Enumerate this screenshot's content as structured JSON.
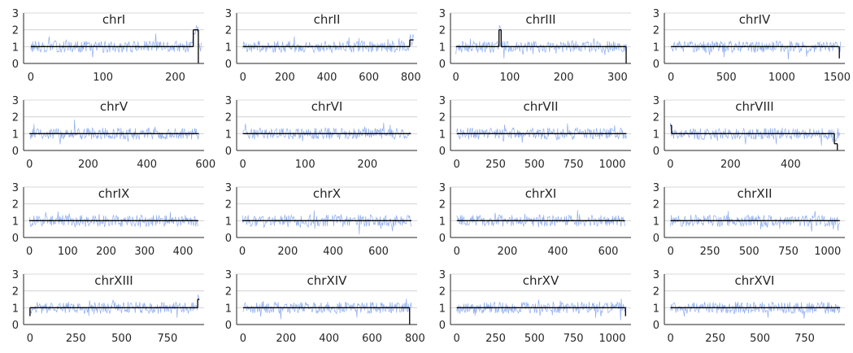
{
  "chart_data": {
    "type": "line",
    "layout": "4x4 grid of small multiples",
    "grid": "horizontal gridlines only",
    "legend": "none",
    "colors": {
      "signal": "#8cacf0",
      "segments": "#000000",
      "grid": "#cccccc",
      "axis": "#262626"
    },
    "ylim": [
      0,
      3
    ],
    "yticks": [
      "0",
      "1",
      "2",
      "3"
    ],
    "panels": [
      {
        "title": "chrI",
        "length": 236,
        "xlim": [
          -10,
          240
        ],
        "xticks": [
          0,
          100,
          200
        ],
        "segments": [
          {
            "x": [
              0,
              225
            ],
            "y": 1.0
          },
          {
            "x": [
              225,
              232
            ],
            "y": 2.0
          }
        ],
        "drops": [
          {
            "x": 232,
            "y": [
              2.0,
              0
            ]
          }
        ]
      },
      {
        "title": "chrII",
        "length": 813,
        "xlim": [
          -30,
          830
        ],
        "xticks": [
          0,
          200,
          400,
          600,
          800
        ],
        "segments": [
          {
            "x": [
              0,
              795
            ],
            "y": 1.0
          },
          {
            "x": [
              795,
              813
            ],
            "y": 1.4
          }
        ],
        "drops": []
      },
      {
        "title": "chrIII",
        "length": 317,
        "xlim": [
          -10,
          325
        ],
        "xticks": [
          0,
          100,
          200,
          300
        ],
        "segments": [
          {
            "x": [
              0,
              80
            ],
            "y": 1.0
          },
          {
            "x": [
              80,
              84
            ],
            "y": 2.0
          },
          {
            "x": [
              84,
              316
            ],
            "y": 1.0
          }
        ],
        "drops": [
          {
            "x": 316,
            "y": [
              1.0,
              0
            ]
          }
        ]
      },
      {
        "title": "chrIV",
        "length": 1532,
        "xlim": [
          -60,
          1570
        ],
        "xticks": [
          0,
          500,
          1000,
          1500
        ],
        "segments": [
          {
            "x": [
              0,
              1520
            ],
            "y": 1.0
          }
        ],
        "drops": [
          {
            "x": 1520,
            "y": [
              1.0,
              0.3
            ]
          }
        ]
      },
      {
        "title": "chrV",
        "length": 577,
        "xlim": [
          -20,
          595
        ],
        "xticks": [
          0,
          200,
          400,
          600
        ],
        "segments": [
          {
            "x": [
              0,
              577
            ],
            "y": 1.0
          }
        ],
        "drops": []
      },
      {
        "title": "chrVI",
        "length": 270,
        "xlim": [
          -10,
          280
        ],
        "xticks": [
          0,
          100,
          200
        ],
        "segments": [
          {
            "x": [
              0,
              270
            ],
            "y": 1.0
          }
        ],
        "drops": []
      },
      {
        "title": "chrVII",
        "length": 1091,
        "xlim": [
          -40,
          1120
        ],
        "xticks": [
          0,
          250,
          500,
          750,
          1000
        ],
        "segments": [
          {
            "x": [
              0,
              1091
            ],
            "y": 1.0
          }
        ],
        "drops": []
      },
      {
        "title": "chrVIII",
        "length": 563,
        "xlim": [
          -20,
          580
        ],
        "xticks": [
          0,
          200,
          400
        ],
        "segments": [
          {
            "x": [
              0,
              4
            ],
            "y": 1.5
          },
          {
            "x": [
              4,
              545
            ],
            "y": 1.0
          },
          {
            "x": [
              545,
              555
            ],
            "y": 0.4
          }
        ],
        "drops": [
          {
            "x": 555,
            "y": [
              0.4,
              0
            ]
          }
        ]
      },
      {
        "title": "chrIX",
        "length": 440,
        "xlim": [
          -15,
          455
        ],
        "xticks": [
          0,
          100,
          200,
          300,
          400
        ],
        "segments": [
          {
            "x": [
              0,
              440
            ],
            "y": 1.0
          }
        ],
        "drops": []
      },
      {
        "title": "chrX",
        "length": 745,
        "xlim": [
          -25,
          770
        ],
        "xticks": [
          0,
          200,
          400,
          600
        ],
        "segments": [
          {
            "x": [
              0,
              745
            ],
            "y": 1.0
          }
        ],
        "drops": []
      },
      {
        "title": "chrXI",
        "length": 666,
        "xlim": [
          -25,
          690
        ],
        "xticks": [
          0,
          200,
          400,
          600
        ],
        "segments": [
          {
            "x": [
              0,
              666
            ],
            "y": 1.0
          }
        ],
        "drops": []
      },
      {
        "title": "chrXII",
        "length": 1078,
        "xlim": [
          -40,
          1110
        ],
        "xticks": [
          0,
          250,
          500,
          750,
          1000
        ],
        "segments": [
          {
            "x": [
              0,
              1078
            ],
            "y": 1.0
          }
        ],
        "drops": []
      },
      {
        "title": "chrXIII",
        "length": 924,
        "xlim": [
          -35,
          950
        ],
        "xticks": [
          0,
          250,
          500,
          750
        ],
        "segments": [
          {
            "x": [
              0,
              915
            ],
            "y": 1.0
          },
          {
            "x": [
              915,
              924
            ],
            "y": 1.5
          }
        ],
        "drops": [
          {
            "x": 0,
            "y": [
              1.0,
              0.5
            ]
          }
        ]
      },
      {
        "title": "chrXIV",
        "length": 784,
        "xlim": [
          -30,
          810
        ],
        "xticks": [
          0,
          200,
          400,
          600,
          800
        ],
        "segments": [
          {
            "x": [
              0,
              775
            ],
            "y": 1.0
          }
        ],
        "drops": [
          {
            "x": 775,
            "y": [
              1.0,
              0
            ]
          }
        ]
      },
      {
        "title": "chrXV",
        "length": 1091,
        "xlim": [
          -40,
          1120
        ],
        "xticks": [
          0,
          250,
          500,
          750,
          1000
        ],
        "segments": [
          {
            "x": [
              0,
              1085
            ],
            "y": 1.0
          }
        ],
        "drops": [
          {
            "x": 1085,
            "y": [
              1.0,
              0.5
            ]
          }
        ]
      },
      {
        "title": "chrXVI",
        "length": 948,
        "xlim": [
          -35,
          975
        ],
        "xticks": [
          0,
          250,
          500,
          750
        ],
        "segments": [
          {
            "x": [
              0,
              948
            ],
            "y": 1.0
          }
        ],
        "drops": []
      }
    ]
  }
}
